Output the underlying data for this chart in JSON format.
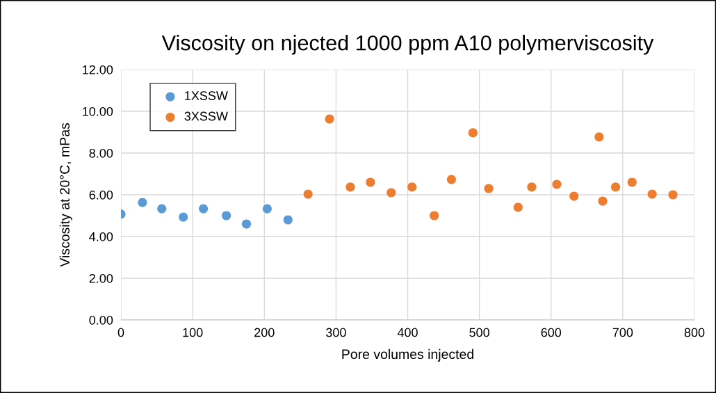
{
  "chart_data": {
    "type": "scatter",
    "title": "Viscosity on njected 1000 ppm A10 polymerviscosity",
    "xlabel": "Pore volumes injected",
    "ylabel": "Viscosity at 20°C, mPas",
    "series": [
      {
        "name": "1XSSW",
        "color": "#5b9bd5",
        "x": [
          0,
          30,
          57,
          87,
          115,
          147,
          175,
          204,
          233
        ],
        "values": [
          5.07,
          5.63,
          5.33,
          4.93,
          5.33,
          5.0,
          4.6,
          5.33,
          4.8
        ]
      },
      {
        "name": "3XSSW",
        "color": "#ed7d31",
        "x": [
          261,
          291,
          320,
          348,
          377,
          406,
          437,
          461,
          491,
          513,
          554,
          573,
          608,
          632,
          667,
          672,
          690,
          713,
          741,
          770
        ],
        "values": [
          6.03,
          9.63,
          6.37,
          6.6,
          6.1,
          6.37,
          5.0,
          6.73,
          8.97,
          6.3,
          5.4,
          6.37,
          6.5,
          5.93,
          8.77,
          5.7,
          6.37,
          6.6,
          6.03,
          6.0
        ]
      }
    ],
    "xlim": [
      0,
      800
    ],
    "xticks": [
      0,
      100,
      200,
      300,
      400,
      500,
      600,
      700,
      800
    ],
    "ylim": [
      0,
      12
    ],
    "yticks": [
      {
        "value": 0,
        "label": "0.00"
      },
      {
        "value": 2,
        "label": "2.00"
      },
      {
        "value": 4,
        "label": "4.00"
      },
      {
        "value": 6,
        "label": "6.00"
      },
      {
        "value": 8,
        "label": "8.00"
      },
      {
        "value": 10,
        "label": "10.00"
      },
      {
        "value": 12,
        "label": "12.00"
      }
    ],
    "grid": true,
    "legend": "top left",
    "marker": "circle"
  }
}
